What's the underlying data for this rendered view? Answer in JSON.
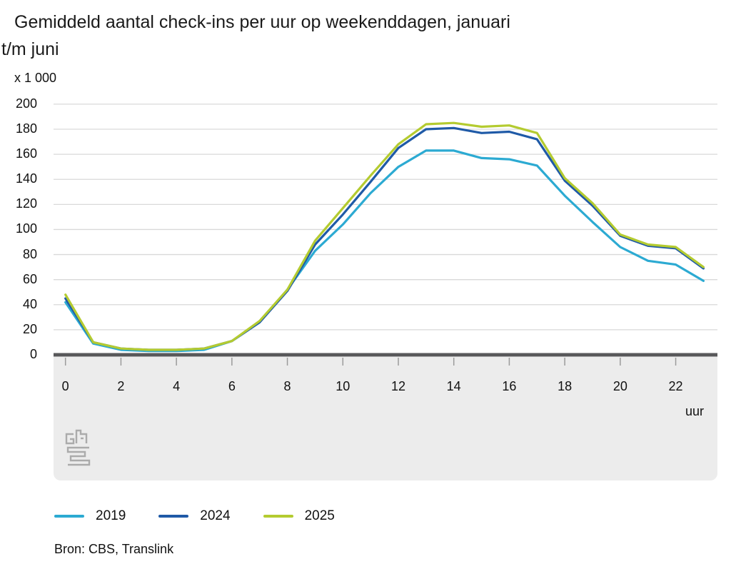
{
  "title": {
    "line1": "Gemiddeld aantal check-ins per uur op weekenddagen, januari",
    "line2": "t/m juni"
  },
  "unit_label": "x 1 000",
  "source_note": "Bron: CBS, Translink",
  "logo_name": "cbs-logo",
  "chart_data": {
    "type": "line",
    "title": "Gemiddeld aantal check-ins per uur op weekenddagen, januari t/m juni",
    "unit": "x 1 000",
    "xlabel": "uur",
    "ylim": [
      0,
      200
    ],
    "y_ticks": [
      0,
      20,
      40,
      60,
      80,
      100,
      120,
      140,
      160,
      180,
      200
    ],
    "x": [
      0,
      1,
      2,
      3,
      4,
      5,
      6,
      7,
      8,
      9,
      10,
      11,
      12,
      13,
      14,
      15,
      16,
      17,
      18,
      19,
      20,
      21,
      22,
      23
    ],
    "x_tick_labels": [
      0,
      2,
      4,
      6,
      8,
      10,
      12,
      14,
      16,
      18,
      20,
      22
    ],
    "grid": true,
    "legend_position": "bottom",
    "series": [
      {
        "name": "2019",
        "color": "#2caad2",
        "values": [
          42,
          9,
          4,
          3,
          3,
          4,
          11,
          26,
          52,
          83,
          104,
          129,
          150,
          163,
          163,
          157,
          156,
          151,
          127,
          106,
          86,
          75,
          72,
          59
        ]
      },
      {
        "name": "2024",
        "color": "#1f5aa7",
        "values": [
          45,
          10,
          5,
          4,
          4,
          5,
          11,
          26,
          51,
          88,
          112,
          138,
          165,
          180,
          181,
          177,
          178,
          172,
          139,
          119,
          95,
          87,
          85,
          69
        ]
      },
      {
        "name": "2025",
        "color": "#b4cb30",
        "values": [
          48,
          10,
          5,
          4,
          4,
          5,
          11,
          27,
          52,
          91,
          117,
          143,
          168,
          184,
          185,
          182,
          183,
          177,
          141,
          121,
          96,
          88,
          86,
          70
        ]
      }
    ]
  },
  "style_colors": {
    "gridline": "#d9d9d9",
    "axis": "#58585a",
    "band": "#ececec",
    "tick": "#9b9b9b",
    "logo": "#ababab"
  }
}
